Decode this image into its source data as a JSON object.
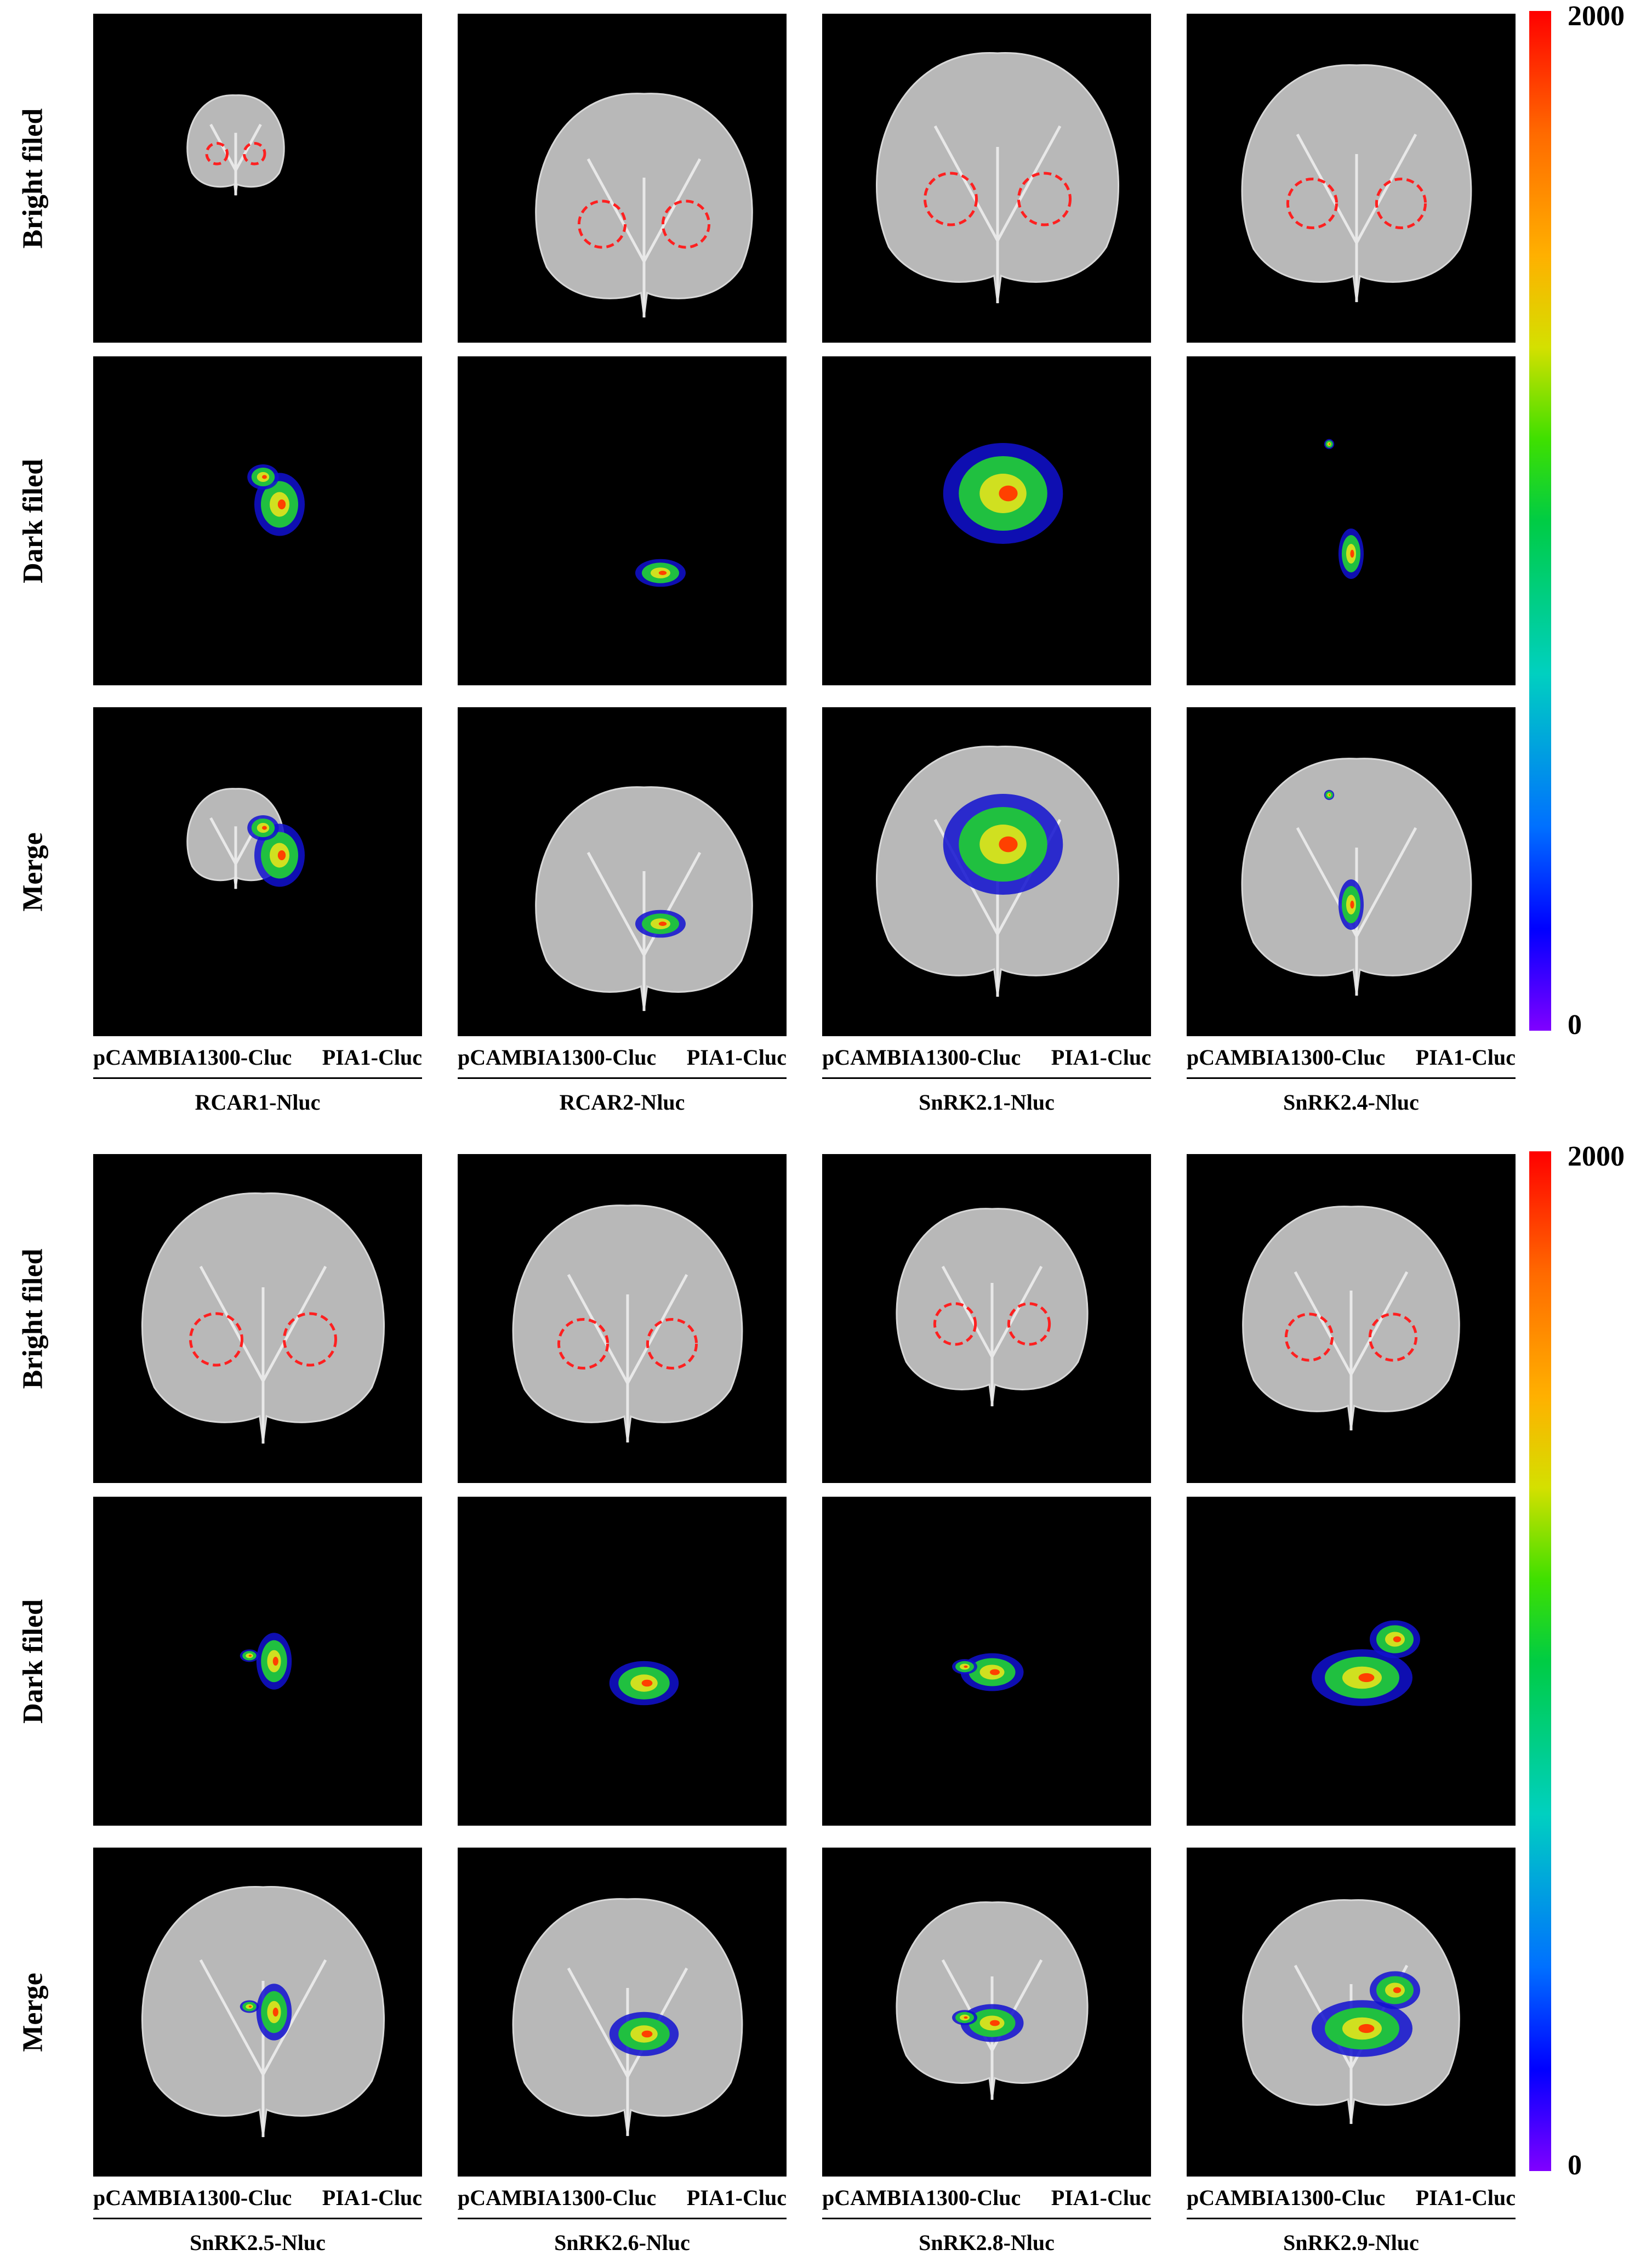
{
  "figure": {
    "row_labels": [
      "Bright filed",
      "Dark filed",
      "Merge"
    ],
    "legend": {
      "max_label": "2000",
      "min_label": "0",
      "colors": [
        "#ff0000",
        "#ffb000",
        "#3fe000",
        "#00d0c0",
        "#0000ff",
        "#8000ff"
      ]
    },
    "panels": [
      {
        "columns": [
          {
            "left_label": "pCAMBIA1300-Cluc",
            "right_label": "PIA1-Cluc",
            "group_label": "RCAR1-Nluc"
          },
          {
            "left_label": "pCAMBIA1300-Cluc",
            "right_label": "PIA1-Cluc",
            "group_label": "RCAR2-Nluc"
          },
          {
            "left_label": "pCAMBIA1300-Cluc",
            "right_label": "PIA1-Cluc",
            "group_label": "SnRK2.1-Nluc"
          },
          {
            "left_label": "pCAMBIA1300-Cluc",
            "right_label": "PIA1-Cluc",
            "group_label": "SnRK2.4-Nluc"
          }
        ]
      },
      {
        "columns": [
          {
            "left_label": "pCAMBIA1300-Cluc",
            "right_label": "PIA1-Cluc",
            "group_label": "SnRK2.5-Nluc"
          },
          {
            "left_label": "pCAMBIA1300-Cluc",
            "right_label": "PIA1-Cluc",
            "group_label": "SnRK2.6-Nluc"
          },
          {
            "left_label": "pCAMBIA1300-Cluc",
            "right_label": "PIA1-Cluc",
            "group_label": "SnRK2.8-Nluc"
          },
          {
            "left_label": "pCAMBIA1300-Cluc",
            "right_label": "PIA1-Cluc",
            "group_label": "SnRK2.9-Nluc"
          }
        ]
      }
    ]
  }
}
